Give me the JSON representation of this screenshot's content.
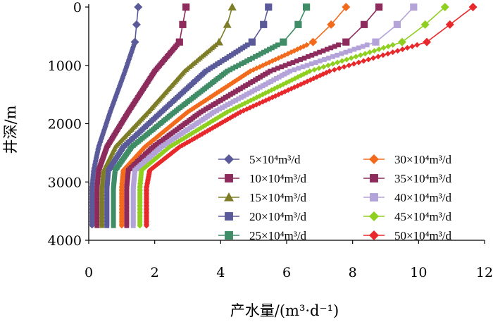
{
  "chart_data": {
    "type": "line",
    "title": "",
    "xlabel": "产水量/(m³·d⁻¹)",
    "ylabel": "井深/m",
    "xlim": [
      0,
      12
    ],
    "ylim": [
      4000,
      0
    ],
    "y_inverted": true,
    "x_ticks": [
      "0",
      "2",
      "4",
      "6",
      "8",
      "10",
      "12"
    ],
    "y_ticks": [
      "0",
      "1000",
      "2000",
      "3000",
      "4000"
    ],
    "grid": false,
    "legend_position": "lower-right",
    "series": [
      {
        "name": "5×10⁴m³/d",
        "color": "#5a5a9a",
        "marker": "diamond",
        "x": [
          1.5,
          1.45,
          1.4,
          1.1,
          0.65,
          0.3,
          0.15,
          0.1,
          0.1
        ],
        "y": [
          0,
          300,
          600,
          1100,
          1800,
          2400,
          2800,
          3100,
          3750
        ]
      },
      {
        "name": "10×10⁴m³/d",
        "color": "#8c2b5c",
        "marker": "square",
        "x": [
          2.95,
          2.85,
          2.75,
          2.0,
          1.2,
          0.55,
          0.3,
          0.25,
          0.25
        ],
        "y": [
          0,
          300,
          600,
          1100,
          1800,
          2400,
          2800,
          3100,
          3750
        ]
      },
      {
        "name": "15×10⁴m³/d",
        "color": "#7d7d28",
        "marker": "triangle",
        "x": [
          4.35,
          4.2,
          3.95,
          2.9,
          1.8,
          0.8,
          0.45,
          0.4,
          0.4
        ],
        "y": [
          0,
          300,
          600,
          1100,
          1800,
          2400,
          2800,
          3100,
          3750
        ]
      },
      {
        "name": "20×10⁴m³/d",
        "color": "#5a5a9a",
        "marker": "square",
        "x": [
          5.45,
          5.3,
          4.95,
          3.55,
          2.2,
          1.05,
          0.6,
          0.55,
          0.55
        ],
        "y": [
          0,
          300,
          600,
          1100,
          1800,
          2400,
          2800,
          3100,
          3750
        ]
      },
      {
        "name": "25×10⁴m³/d",
        "color": "#3f8c66",
        "marker": "square",
        "x": [
          6.6,
          6.35,
          5.9,
          4.2,
          2.6,
          1.3,
          0.8,
          0.75,
          0.75
        ],
        "y": [
          0,
          300,
          600,
          1100,
          1800,
          2400,
          2800,
          3100,
          3750
        ]
      },
      {
        "name": "30×10⁴m³/d",
        "color": "#f26a1b",
        "marker": "diamond",
        "x": [
          7.8,
          7.35,
          6.8,
          4.9,
          3.0,
          1.7,
          1.05,
          1.0,
          1.0
        ],
        "y": [
          0,
          300,
          600,
          1100,
          1800,
          2400,
          2800,
          3100,
          3750
        ]
      },
      {
        "name": "35×10⁴m³/d",
        "color": "#8c2b5c",
        "marker": "square",
        "x": [
          8.8,
          8.35,
          7.8,
          5.5,
          3.4,
          1.95,
          1.2,
          1.15,
          1.15
        ],
        "y": [
          0,
          300,
          600,
          1100,
          1800,
          2400,
          2800,
          3100,
          3750
        ]
      },
      {
        "name": "40×10⁴m³/d",
        "color": "#b3a3d9",
        "marker": "square",
        "x": [
          9.85,
          9.35,
          8.7,
          6.1,
          3.8,
          2.2,
          1.4,
          1.35,
          1.35
        ],
        "y": [
          0,
          300,
          600,
          1100,
          1800,
          2400,
          2800,
          3100,
          3750
        ]
      },
      {
        "name": "45×10⁴m³/d",
        "color": "#8fcf1f",
        "marker": "diamond",
        "x": [
          10.8,
          10.2,
          9.5,
          6.7,
          4.2,
          2.45,
          1.6,
          1.55,
          1.55
        ],
        "y": [
          0,
          300,
          600,
          1100,
          1800,
          2400,
          2800,
          3100,
          3750
        ]
      },
      {
        "name": "50×10⁴m³/d",
        "color": "#e8282b",
        "marker": "diamond",
        "x": [
          11.65,
          10.95,
          10.25,
          7.3,
          4.6,
          2.75,
          1.85,
          1.75,
          1.75
        ],
        "y": [
          0,
          300,
          600,
          1100,
          1800,
          2400,
          2800,
          3100,
          3750
        ]
      }
    ]
  }
}
